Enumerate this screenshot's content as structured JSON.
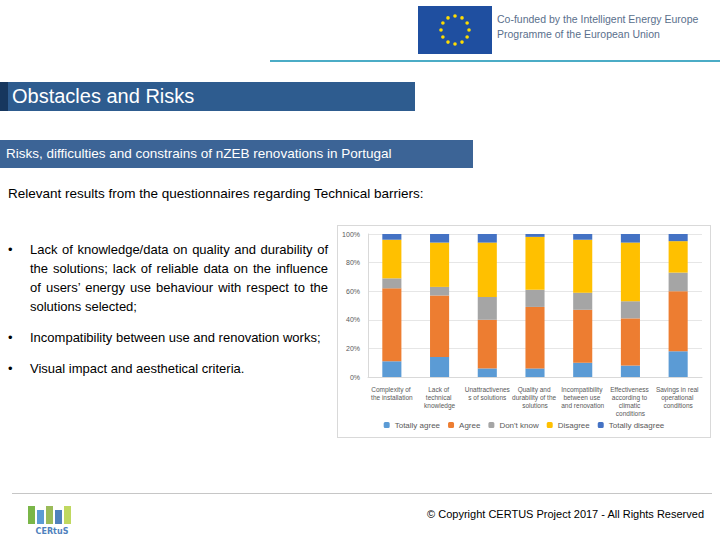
{
  "slide": {
    "eu_text": [
      "Co-funded by the Intelligent Energy Europe",
      "Programme of the European Union"
    ],
    "title": "Obstacles and Risks",
    "subtitle": "Risks, difficulties and constrains of nZEB renovations  in Portugal",
    "intro": "Relevant results from the questionnaires regarding Technical barriers:",
    "bullets": [
      "Lack of knowledge/data on quality and durability of the solutions; lack of reliable data on the influence of users’ energy use behaviour with respect to the solutions selected;",
      "Incompatibility between use and renovation works;",
      "Visual impact and aesthetical criteria."
    ],
    "footer": {
      "logo": "CERtuS",
      "copyright": "© Copyright CERTUS Project 2017 - All Rights Reserved"
    }
  },
  "chart_data": {
    "type": "bar",
    "stacked": true,
    "categories": [
      "Complexity of the installation",
      "Lack of technical knowledge",
      "Unattractiveness of solutions",
      "Quality and durability of the solutions",
      "Incompatibility between use and renovation",
      "Effectiveness according to climatic conditions",
      "Savings in real operational conditions"
    ],
    "series": [
      {
        "name": "Totally agree",
        "color": "#5b9bd5",
        "values": [
          11,
          14,
          6,
          6,
          10,
          8,
          18
        ]
      },
      {
        "name": "Agree",
        "color": "#ed7d31",
        "values": [
          51,
          43,
          34,
          43,
          37,
          33,
          42
        ]
      },
      {
        "name": "Don't know",
        "color": "#a5a5a5",
        "values": [
          7,
          6,
          16,
          12,
          12,
          12,
          13
        ]
      },
      {
        "name": "Disagree",
        "color": "#ffc000",
        "values": [
          27,
          31,
          38,
          37,
          37,
          41,
          22
        ]
      },
      {
        "name": "Totally disagree",
        "color": "#4472c4",
        "values": [
          4,
          6,
          6,
          2,
          4,
          6,
          5
        ]
      }
    ],
    "ylim": [
      0,
      100
    ],
    "yticks": [
      {
        "value": 0,
        "label": "0%"
      },
      {
        "value": 20,
        "label": "20%"
      },
      {
        "value": 40,
        "label": "40%"
      },
      {
        "value": 60,
        "label": "60%"
      },
      {
        "value": 80,
        "label": "80%"
      },
      {
        "value": 100,
        "label": "100%"
      }
    ],
    "grid": true,
    "legend": "bottom"
  }
}
